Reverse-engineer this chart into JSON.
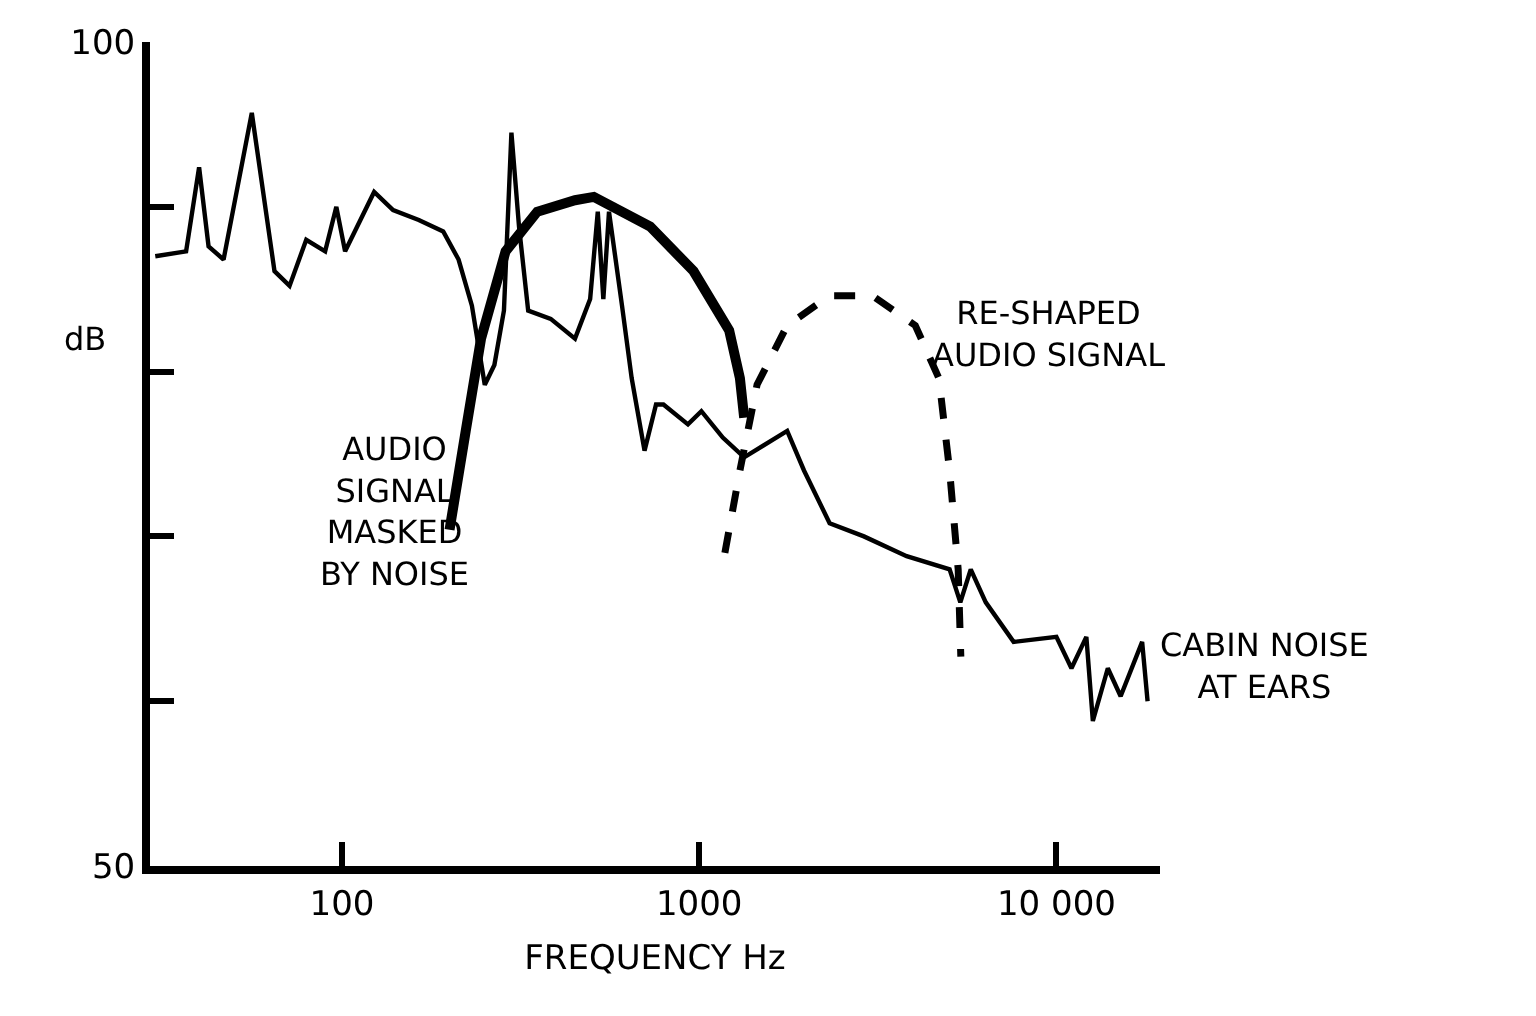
{
  "chart_data": {
    "type": "line",
    "xlabel": "FREQUENCY Hz",
    "ylabel": "dB",
    "log": "x",
    "legend": false,
    "marker": "none",
    "xlim": [
      29,
      19500
    ],
    "xticks": [
      {
        "value": 100,
        "label": "100"
      },
      {
        "value": 1000,
        "label": "1000"
      },
      {
        "value": 10000,
        "label": "10 000"
      }
    ],
    "ylim": [
      50,
      100
    ],
    "yticks": [
      50,
      {
        "value": 60,
        "label": null
      },
      {
        "value": 70,
        "label": null
      },
      {
        "value": 80,
        "label": null
      },
      {
        "value": 90,
        "label": null
      },
      100
    ],
    "series": [
      {
        "name": "CABIN NOISE\nAT EARS",
        "color": "#000000",
        "line_style": "solid",
        "x": [
          30,
          36.6,
          39.8,
          42.3,
          46.6,
          55.9,
          64.7,
          71.3,
          79.4,
          89.7,
          96.4,
          102,
          123,
          139,
          164,
          192,
          212,
          231,
          251,
          267,
          284,
          298,
          313,
          332,
          384,
          449,
          495,
          520,
          539,
          559,
          608,
          647,
          703,
          757,
          794,
          930,
          1014,
          1164,
          1336,
          1763,
          1965,
          2318,
          2891,
          3808,
          5023,
          5383,
          5757,
          6342,
          7590,
          10000,
          11020,
          12130,
          12650,
          13930,
          15130,
          17380,
          18000
        ],
        "values": [
          87.0,
          87.3,
          92.4,
          87.6,
          86.8,
          95.7,
          86.1,
          85.2,
          88.0,
          87.3,
          90.0,
          87.3,
          90.9,
          89.8,
          89.2,
          88.5,
          86.8,
          84.0,
          79.2,
          80.4,
          83.7,
          94.5,
          88.8,
          83.7,
          83.2,
          82.0,
          84.4,
          89.7,
          84.4,
          89.7,
          84.0,
          79.6,
          75.2,
          78.0,
          78.0,
          76.8,
          77.6,
          76.0,
          74.8,
          76.4,
          74.0,
          70.8,
          70.0,
          68.8,
          68.0,
          66.0,
          68.0,
          66.0,
          63.6,
          63.9,
          62.0,
          63.9,
          58.8,
          62.0,
          60.3,
          63.6,
          60.0
        ]
      },
      {
        "name": "AUDIO\nSIGNAL\nMASKED\nBY NOISE",
        "color": "#000000",
        "line_style": "solid",
        "x": [
          200,
          222,
          245,
          287,
          352,
          449,
          507,
          729,
          964,
          1213,
          1300,
          1336
        ],
        "values": [
          70.4,
          76.4,
          82.0,
          87.3,
          89.7,
          90.4,
          90.6,
          88.8,
          86.1,
          82.5,
          79.6,
          77.2
        ]
      },
      {
        "name": "RE-SHAPED\nAUDIO SIGNAL",
        "color": "#000000",
        "line_style": "dashed",
        "x": [
          1180,
          1300,
          1452,
          1763,
          2318,
          3054,
          4027,
          4688,
          5023,
          5309,
          5400
        ],
        "values": [
          69.0,
          74.0,
          79.2,
          82.8,
          84.6,
          84.6,
          82.8,
          79.6,
          74.0,
          68.0,
          62.7
        ]
      }
    ]
  }
}
